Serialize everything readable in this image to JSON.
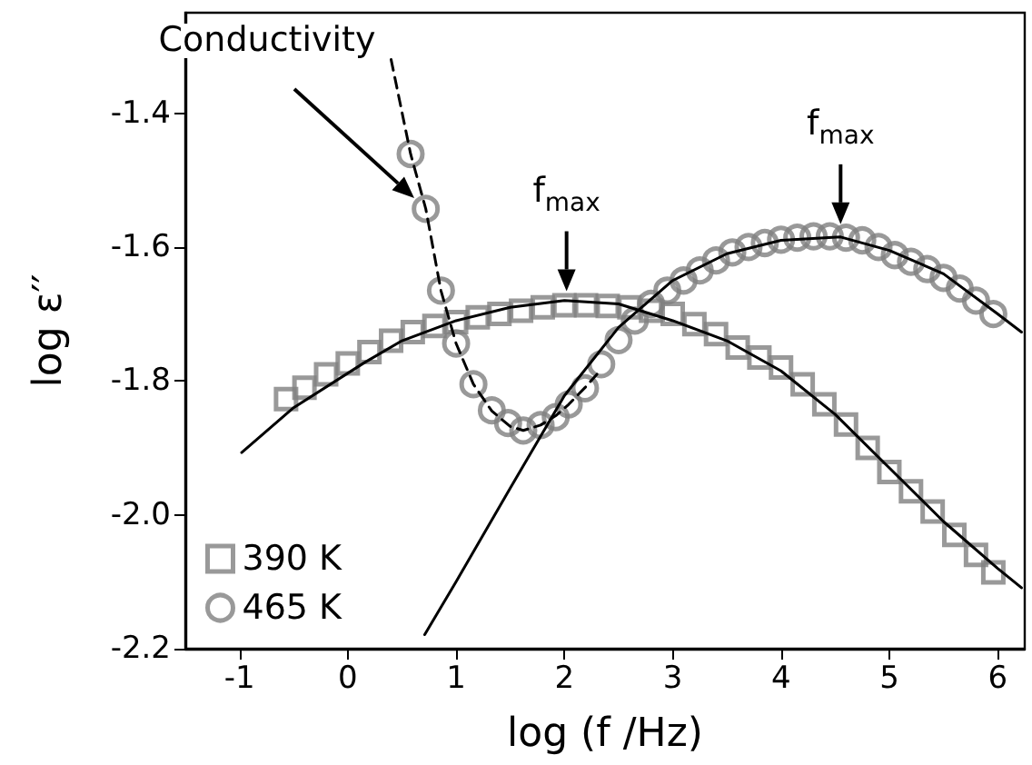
{
  "chart_data": {
    "type": "scatter",
    "xlabel": "log (f /Hz)",
    "ylabel": "log ε′′",
    "xlim": [
      -1.5,
      6.25
    ],
    "xticks": [
      -1,
      0,
      1,
      2,
      3,
      4,
      5,
      6
    ],
    "ylim": [
      -2.2,
      -1.25
    ],
    "yticks": [
      {
        "value": -2.2,
        "label": "-2.2"
      },
      {
        "value": -2.0,
        "label": "-2.0"
      },
      {
        "value": -1.8,
        "label": "-1.8"
      },
      {
        "value": -1.6,
        "label": "-1.6"
      },
      {
        "value": -1.4,
        "label": "-1.4"
      }
    ],
    "grid": false,
    "legend": "bottom left",
    "series": [
      {
        "name": "390 K",
        "marker": "square",
        "color": "#808080",
        "x": [
          -0.57,
          -0.4,
          -0.2,
          0,
          0.2,
          0.4,
          0.6,
          0.8,
          1.0,
          1.2,
          1.4,
          1.6,
          1.8,
          2.0,
          2.2,
          2.4,
          2.6,
          2.8,
          3.0,
          3.2,
          3.4,
          3.6,
          3.8,
          4.0,
          4.2,
          4.4,
          4.6,
          4.8,
          5.0,
          5.2,
          5.4,
          5.6,
          5.8,
          5.96
        ],
        "values": [
          -1.827,
          -1.81,
          -1.79,
          -1.774,
          -1.757,
          -1.74,
          -1.727,
          -1.718,
          -1.712,
          -1.705,
          -1.7,
          -1.695,
          -1.69,
          -1.687,
          -1.687,
          -1.688,
          -1.69,
          -1.695,
          -1.7,
          -1.715,
          -1.73,
          -1.75,
          -1.765,
          -1.78,
          -1.805,
          -1.835,
          -1.865,
          -1.9,
          -1.936,
          -1.965,
          -1.995,
          -2.03,
          -2.06,
          -2.086
        ]
      },
      {
        "name": "465 K",
        "marker": "circle",
        "color": "#808080",
        "x": [
          0.58,
          0.72,
          0.86,
          1.0,
          1.16,
          1.33,
          1.48,
          1.62,
          1.78,
          1.92,
          2.04,
          2.19,
          2.34,
          2.5,
          2.65,
          2.8,
          2.95,
          3.1,
          3.25,
          3.4,
          3.55,
          3.7,
          3.85,
          4.0,
          4.15,
          4.3,
          4.45,
          4.6,
          4.75,
          4.9,
          5.05,
          5.2,
          5.35,
          5.5,
          5.65,
          5.8,
          5.96
        ],
        "values": [
          -1.461,
          -1.543,
          -1.665,
          -1.744,
          -1.805,
          -1.844,
          -1.863,
          -1.874,
          -1.866,
          -1.854,
          -1.835,
          -1.811,
          -1.775,
          -1.739,
          -1.71,
          -1.685,
          -1.665,
          -1.65,
          -1.635,
          -1.62,
          -1.608,
          -1.6,
          -1.594,
          -1.589,
          -1.586,
          -1.584,
          -1.584,
          -1.586,
          -1.59,
          -1.6,
          -1.612,
          -1.622,
          -1.633,
          -1.646,
          -1.662,
          -1.68,
          -1.7
        ]
      },
      {
        "type": "line",
        "marker": "none",
        "line_style": "solid",
        "color": "#000000",
        "x": [
          -0.98,
          -0.5,
          0.15,
          0.5,
          1.0,
          1.5,
          2.0,
          2.5,
          3.0,
          3.5,
          4.0,
          4.5,
          5.0,
          5.5,
          6.0,
          6.22
        ],
        "values": [
          -1.907,
          -1.84,
          -1.773,
          -1.74,
          -1.71,
          -1.69,
          -1.68,
          -1.685,
          -1.71,
          -1.74,
          -1.785,
          -1.85,
          -1.93,
          -2.01,
          -2.08,
          -2.109
        ]
      },
      {
        "type": "line",
        "marker": "none",
        "line_style": "solid",
        "color": "#000000",
        "x": [
          0.71,
          1.0,
          1.5,
          2.0,
          2.5,
          3.0,
          3.5,
          4.0,
          4.55,
          5.0,
          5.5,
          6.0,
          6.22
        ],
        "values": [
          -2.179,
          -2.1,
          -1.96,
          -1.822,
          -1.72,
          -1.65,
          -1.61,
          -1.59,
          -1.585,
          -1.605,
          -1.64,
          -1.7,
          -1.727
        ]
      },
      {
        "type": "line",
        "marker": "none",
        "line_style": "dashed",
        "color": "#000000",
        "x": [
          0.4,
          0.58,
          0.72,
          0.86,
          1.0,
          1.16,
          1.33,
          1.5,
          1.62,
          1.78,
          1.92,
          2.04,
          2.19,
          2.3
        ],
        "values": [
          -1.32,
          -1.461,
          -1.543,
          -1.665,
          -1.744,
          -1.805,
          -1.845,
          -1.868,
          -1.874,
          -1.866,
          -1.852,
          -1.835,
          -1.81,
          -1.79
        ]
      }
    ],
    "annotations": [
      "Conductivity",
      {
        "text": "f$_{max}$",
        "x": 2.02,
        "y": -1.685
      },
      {
        "text": "f$_{max}$",
        "x": 4.55,
        "y": -1.585
      }
    ]
  }
}
